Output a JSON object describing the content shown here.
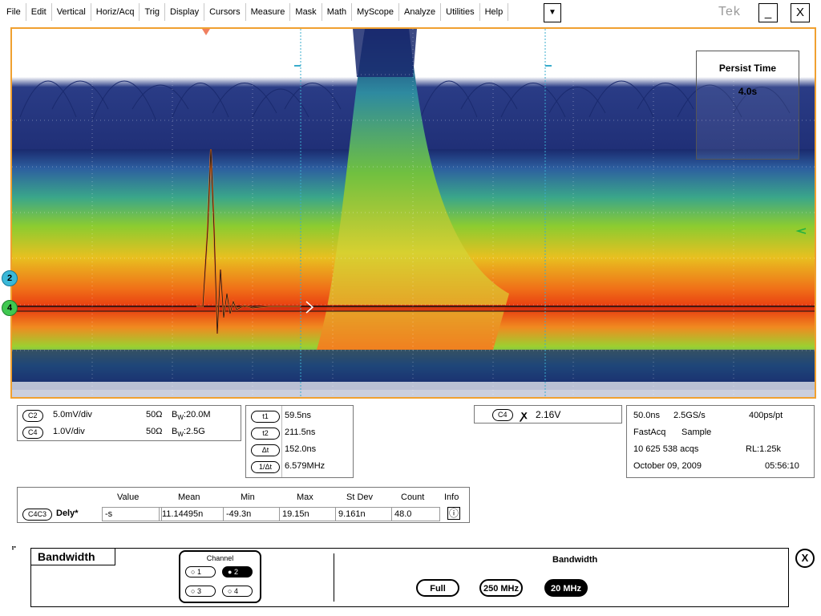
{
  "menu": {
    "items": [
      {
        "label": "File"
      },
      {
        "label": "Edit"
      },
      {
        "label": "Vertical"
      },
      {
        "label": "Horiz/Acq"
      },
      {
        "label": "Trig"
      },
      {
        "label": "Display"
      },
      {
        "label": "Cursors"
      },
      {
        "label": "Measure"
      },
      {
        "label": "Mask"
      },
      {
        "label": "Math"
      },
      {
        "label": "MyScope"
      },
      {
        "label": "Analyze"
      },
      {
        "label": "Utilities"
      },
      {
        "label": "Help"
      }
    ],
    "dropdown_icon": "triangle-down",
    "logo": "Tek",
    "minimize_label": "_",
    "close_label": "X"
  },
  "display": {
    "persist_title": "Persist Time",
    "persist_value": "4.0s",
    "ch2_marker": "2",
    "ch4_marker": "4",
    "frame_color": "#f0a030"
  },
  "vertical": {
    "ch2": {
      "tag": "C2",
      "scale": "5.0mV/div",
      "impedance": "50Ω",
      "bw_prefix": "B",
      "bw_sub": "W",
      "bw": ":20.0M"
    },
    "ch4": {
      "tag": "C4",
      "scale": "1.0V/div",
      "impedance": "50Ω",
      "bw_prefix": "B",
      "bw_sub": "W",
      "bw": ":2.5G"
    }
  },
  "cursors": {
    "t1": {
      "label": "t1",
      "value": "59.5ns"
    },
    "t2": {
      "label": "t2",
      "value": "211.5ns"
    },
    "dt": {
      "label": "Δt",
      "value": "152.0ns"
    },
    "inv": {
      "label": "1/Δt",
      "value": "6.579MHz"
    }
  },
  "trigger": {
    "source": "C4",
    "level": "2.16V"
  },
  "acquisition": {
    "timebase": "50.0ns",
    "sample_rate": "2.5GS/s",
    "resolution": "400ps/pt",
    "mode": "FastAcq",
    "sampling": "Sample",
    "acqs": "10 625 538 acqs",
    "record_length": "RL:1.25k",
    "date": "October 09, 2009",
    "time": "05:56:10"
  },
  "measurement": {
    "headers": [
      "Value",
      "Mean",
      "Min",
      "Max",
      "St Dev",
      "Count",
      "Info"
    ],
    "source": "C4C3",
    "name": "Dely*",
    "value": "-s",
    "mean": "11.14495n",
    "min": "-49.3n",
    "max": "19.15n",
    "stdev": "9.161n",
    "count": "48.0"
  },
  "bandwidth_panel": {
    "title": "Bandwidth",
    "channel_label": "Channel",
    "channels": [
      "1",
      "2",
      "3",
      "4"
    ],
    "selected_channel": "2",
    "bandwidth_label": "Bandwidth",
    "options": [
      "Full",
      "250 MHz",
      "20 MHz"
    ],
    "selected_option": "20 MHz",
    "close_label": "X"
  }
}
